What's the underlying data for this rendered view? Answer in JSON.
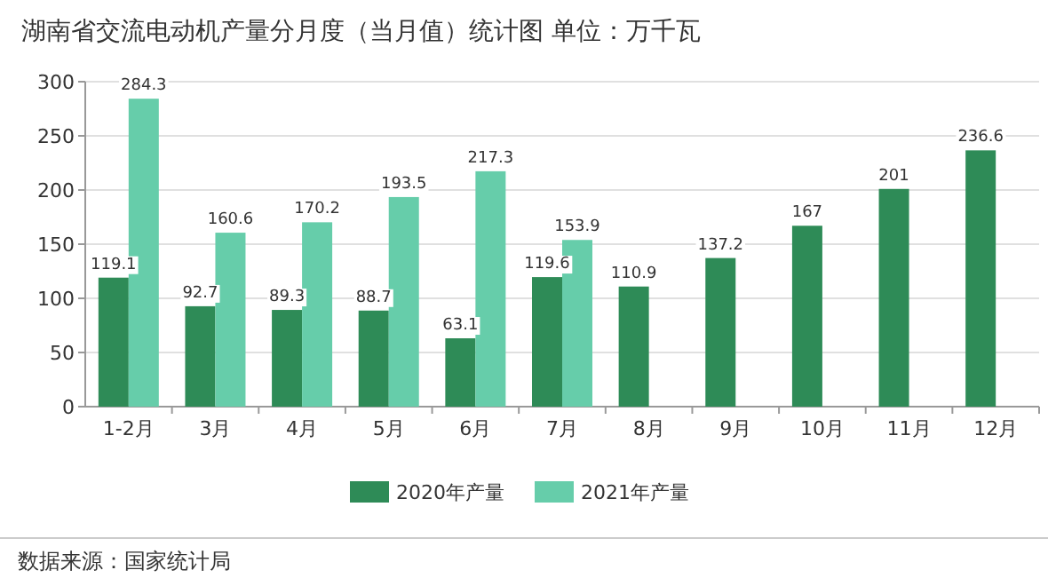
{
  "chart_data": {
    "type": "bar",
    "title": "湖南省交流电动机产量分月度（当月值）统计图 单位：万千瓦",
    "categories": [
      "1-2月",
      "3月",
      "4月",
      "5月",
      "6月",
      "7月",
      "8月",
      "9月",
      "10月",
      "11月",
      "12月"
    ],
    "series": [
      {
        "name": "2020年产量",
        "color": "#2e8b57",
        "values": [
          119.1,
          92.7,
          89.3,
          88.7,
          63.1,
          119.6,
          110.9,
          137.2,
          167,
          201,
          236.6
        ]
      },
      {
        "name": "2021年产量",
        "color": "#66cdaa",
        "values": [
          284.3,
          160.6,
          170.2,
          193.5,
          217.3,
          153.9,
          null,
          null,
          null,
          null,
          null
        ]
      }
    ],
    "ylim": [
      0,
      300
    ],
    "yticks": [
      0,
      50,
      100,
      150,
      200,
      250,
      300
    ],
    "grid": "y",
    "legend": "bottom",
    "data_labels": true,
    "annotations": [
      "数据来源：国家统计局"
    ]
  }
}
